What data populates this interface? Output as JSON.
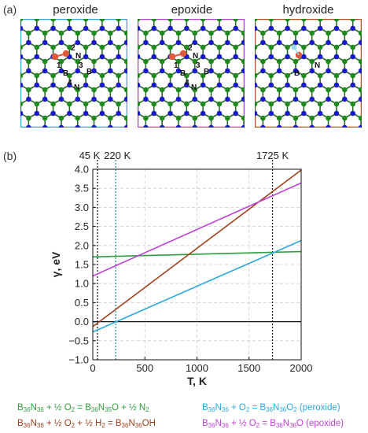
{
  "panel_a_label": "(a)",
  "panel_b_label": "(b)",
  "structures": [
    {
      "title": "peroxide",
      "border": "#29a8e0",
      "adsorbate": "peroxide",
      "atom_labels": {
        "n1": "1",
        "n2": "2",
        "n3": "3",
        "n4": "4",
        "b": "B",
        "n": "N",
        "b2": "B",
        "n3b": "N"
      }
    },
    {
      "title": "epoxide",
      "border": "#b040d8",
      "adsorbate": "epoxide",
      "atom_labels": {
        "n1": "1",
        "n2": "2",
        "n3": "3",
        "n4": "4",
        "b": "B",
        "n": "N",
        "b2": "B",
        "n3b": "N"
      }
    },
    {
      "title": "hydroxide",
      "border": "#b0501e",
      "adsorbate": "hydroxide",
      "atom_labels": {
        "b": "B",
        "n": "N"
      }
    }
  ],
  "colors": {
    "boron": "#1e8a1e",
    "nitrogen": "#1a1acc",
    "oxygen": "#e05a3a",
    "hydrogen": "#cfd8dc",
    "bond": "#2a6a2a"
  },
  "chart_data": {
    "type": "line",
    "xlabel": "T, K",
    "ylabel": "γ, eV",
    "xlim": [
      0,
      2000
    ],
    "ylim": [
      -1.0,
      4.0
    ],
    "xticks": [
      0,
      500,
      1000,
      1500,
      2000
    ],
    "yticks": [
      -1.0,
      -0.5,
      0.0,
      0.5,
      1.0,
      1.5,
      2.0,
      2.5,
      3.0,
      3.5,
      4.0
    ],
    "ytick_labels": [
      "−1.0",
      "−0.5",
      "0.0",
      "0.5",
      "1.0",
      "1.5",
      "2.0",
      "2.5",
      "3.0",
      "3.5",
      "4.0"
    ],
    "grid": true,
    "vlines": [
      {
        "x": 45,
        "label": "45 K",
        "style": "black-dotted"
      },
      {
        "x": 220,
        "label": "220 K",
        "style": "teal-dotted"
      },
      {
        "x": 1725,
        "label": "1725 K",
        "style": "black-dotted"
      }
    ],
    "series": [
      {
        "color": "#2e9e3e",
        "x": [
          0,
          2000
        ],
        "y": [
          1.7,
          1.84
        ]
      },
      {
        "color": "#29a8e0",
        "x": [
          0,
          2000
        ],
        "y": [
          -0.27,
          2.13
        ]
      },
      {
        "color": "#a0401e",
        "x": [
          0,
          2000
        ],
        "y": [
          -0.13,
          3.98
        ]
      },
      {
        "color": "#c040d8",
        "x": [
          0,
          2000
        ],
        "y": [
          1.2,
          3.64
        ]
      }
    ],
    "zero_line": 0.0
  },
  "legend": {
    "eq1": {
      "color": "#2e9e3e",
      "parts": [
        "B",
        "36",
        "N",
        "36",
        " + ½ O",
        "2",
        " = B",
        "36",
        "N",
        "35",
        "O + ½ N",
        "2"
      ]
    },
    "eq2": {
      "color": "#29a8e0",
      "parts": [
        "B",
        "36",
        "N",
        "36",
        " + O",
        "2",
        " = B",
        "36",
        "N",
        "36",
        "O",
        "2",
        " (peroxide)"
      ]
    },
    "eq3": {
      "color": "#a0401e",
      "parts": [
        "B",
        "36",
        "N",
        "36",
        " + ½ O",
        "2",
        " + ½ H",
        "2",
        " = B",
        "36",
        "N",
        "36",
        "OH"
      ]
    },
    "eq4": {
      "color": "#c040d8",
      "parts": [
        "B",
        "36",
        "N",
        "36",
        " + ½ O",
        "2",
        " = B",
        "36",
        "N",
        "36",
        "O (epoxide)"
      ]
    }
  }
}
